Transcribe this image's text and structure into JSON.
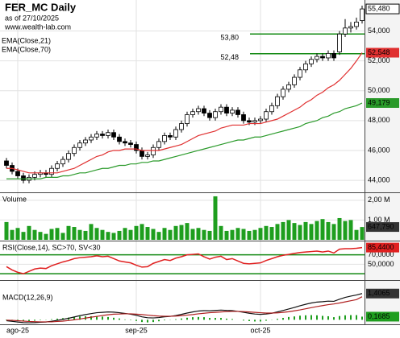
{
  "header": {
    "title": "FER_MC Daily",
    "subtitle": "as of 27/10/2025",
    "site": "www.wealth-lab.com"
  },
  "chart_data": [
    {
      "type": "candlestick",
      "categories": [
        null,
        null,
        "ago-25",
        null,
        null,
        null,
        null,
        null,
        null,
        null,
        null,
        null,
        null,
        null,
        null,
        null,
        null,
        null,
        null,
        null,
        null,
        null,
        null,
        "sep-25",
        null,
        null,
        null,
        null,
        null,
        null,
        null,
        null,
        null,
        null,
        null,
        null,
        null,
        null,
        null,
        null,
        null,
        null,
        null,
        null,
        null,
        "oct-25",
        null,
        null,
        null,
        null,
        null,
        null,
        null,
        null,
        null,
        null,
        null,
        null,
        null,
        null,
        null,
        null,
        null,
        null
      ],
      "open": [
        45.3,
        45.0,
        44.6,
        44.3,
        44.0,
        44.2,
        44.4,
        44.5,
        44.4,
        44.8,
        45.1,
        45.4,
        45.8,
        46.2,
        46.5,
        46.7,
        46.9,
        47.1,
        47.0,
        47.2,
        46.9,
        46.6,
        46.5,
        46.4,
        46.0,
        45.6,
        45.7,
        46.2,
        46.6,
        47.0,
        46.9,
        47.4,
        47.8,
        48.4,
        48.6,
        48.8,
        48.5,
        48.2,
        48.6,
        48.9,
        48.5,
        48.7,
        48.4,
        48.0,
        47.9,
        48.0,
        48.1,
        48.6,
        49.0,
        49.6,
        50.1,
        50.4,
        50.9,
        51.4,
        51.8,
        52.1,
        52.3,
        52.2,
        52.5,
        52.6,
        53.8,
        54.2,
        54.3,
        54.7
      ],
      "high": [
        45.5,
        45.2,
        44.8,
        44.5,
        44.4,
        44.6,
        44.7,
        44.7,
        45.0,
        45.3,
        45.6,
        46.0,
        46.4,
        46.7,
        46.9,
        47.1,
        47.3,
        47.3,
        47.4,
        47.4,
        47.1,
        46.8,
        46.7,
        46.6,
        46.2,
        45.9,
        46.4,
        46.8,
        47.2,
        47.2,
        47.6,
        48.0,
        48.6,
        48.8,
        49.0,
        49.0,
        48.7,
        48.8,
        49.1,
        49.1,
        48.9,
        48.9,
        48.6,
        48.2,
        48.2,
        48.3,
        48.8,
        49.2,
        49.8,
        50.3,
        50.6,
        51.1,
        51.6,
        52.0,
        52.3,
        52.5,
        52.5,
        52.7,
        52.7,
        54.0,
        54.8,
        54.6,
        54.9,
        55.7
      ],
      "low": [
        44.8,
        44.4,
        44.1,
        43.8,
        43.8,
        44.0,
        44.2,
        44.2,
        44.2,
        44.6,
        44.9,
        45.2,
        45.6,
        46.0,
        46.3,
        46.5,
        46.7,
        46.8,
        46.8,
        46.7,
        46.4,
        46.3,
        46.2,
        45.8,
        45.4,
        45.4,
        45.5,
        46.0,
        46.4,
        46.7,
        46.7,
        47.2,
        47.6,
        48.2,
        48.4,
        48.3,
        48.0,
        48.0,
        48.4,
        48.3,
        48.3,
        48.2,
        47.8,
        47.7,
        47.7,
        47.8,
        47.9,
        48.4,
        48.8,
        49.4,
        49.9,
        50.2,
        50.7,
        51.2,
        51.6,
        51.9,
        52.0,
        52.0,
        52.0,
        52.4,
        53.6,
        53.9,
        54.1,
        54.5
      ],
      "close": [
        45.0,
        44.6,
        44.3,
        44.0,
        44.2,
        44.4,
        44.5,
        44.4,
        44.8,
        45.1,
        45.4,
        45.8,
        46.2,
        46.5,
        46.7,
        46.9,
        47.1,
        47.0,
        47.2,
        46.9,
        46.6,
        46.5,
        46.4,
        46.0,
        45.6,
        45.7,
        46.2,
        46.6,
        47.0,
        46.9,
        47.4,
        47.8,
        48.4,
        48.6,
        48.8,
        48.5,
        48.2,
        48.6,
        48.9,
        48.5,
        48.7,
        48.4,
        48.0,
        47.9,
        48.0,
        48.1,
        48.6,
        49.0,
        49.6,
        50.1,
        50.4,
        50.9,
        51.4,
        51.8,
        52.1,
        52.3,
        52.2,
        52.5,
        52.2,
        53.8,
        54.2,
        54.3,
        54.6,
        55.48
      ],
      "last_label": "55,480",
      "series": [
        {
          "name": "EMA(Close,21)",
          "color": "#e03030",
          "last_label": "52,548",
          "values": [
            44.8,
            44.8,
            44.7,
            44.6,
            44.5,
            44.5,
            44.5,
            44.5,
            44.5,
            44.5,
            44.6,
            44.7,
            44.8,
            45.0,
            45.2,
            45.4,
            45.6,
            45.7,
            45.9,
            46.0,
            46.0,
            46.1,
            46.1,
            46.1,
            46.0,
            46.0,
            46.0,
            46.0,
            46.1,
            46.2,
            46.3,
            46.4,
            46.6,
            46.8,
            47.0,
            47.1,
            47.2,
            47.3,
            47.5,
            47.6,
            47.7,
            47.7,
            47.7,
            47.8,
            47.8,
            47.8,
            47.9,
            48.0,
            48.1,
            48.3,
            48.5,
            48.7,
            48.9,
            49.2,
            49.4,
            49.7,
            49.9,
            50.2,
            50.4,
            50.7,
            51.1,
            51.5,
            52.0,
            52.548
          ]
        },
        {
          "name": "EMA(Close,70)",
          "color": "#2a9a2a",
          "last_label": "49,179",
          "values": [
            44.1,
            44.1,
            44.1,
            44.1,
            44.1,
            44.1,
            44.1,
            44.2,
            44.2,
            44.2,
            44.3,
            44.3,
            44.4,
            44.5,
            44.5,
            44.6,
            44.7,
            44.8,
            44.8,
            44.9,
            45.0,
            45.0,
            45.1,
            45.1,
            45.2,
            45.2,
            45.3,
            45.3,
            45.4,
            45.5,
            45.6,
            45.7,
            45.8,
            45.9,
            46.0,
            46.1,
            46.2,
            46.3,
            46.4,
            46.5,
            46.6,
            46.7,
            46.7,
            46.8,
            46.9,
            46.9,
            47.0,
            47.1,
            47.2,
            47.3,
            47.4,
            47.5,
            47.6,
            47.8,
            47.9,
            48.0,
            48.2,
            48.3,
            48.5,
            48.6,
            48.8,
            48.9,
            49.0,
            49.179
          ]
        }
      ],
      "levels": [
        {
          "value": 53.8,
          "label": "53,80"
        },
        {
          "value": 52.48,
          "label": "52,48"
        }
      ],
      "level_color": "#138a13",
      "ylim": [
        43.25,
        55.97
      ],
      "yticks": [
        {
          "value": 44,
          "label": "44,000"
        },
        {
          "value": 46,
          "label": "46,000"
        },
        {
          "value": 48,
          "label": "48,000"
        },
        {
          "value": 50,
          "label": "50,000"
        },
        {
          "value": 52,
          "label": "52,000"
        },
        {
          "value": 54,
          "label": "54,000"
        }
      ],
      "grid": true
    },
    {
      "type": "bar",
      "title": "Volume",
      "color": "#1e9e1e",
      "last_label": "647,790",
      "values": [
        900000,
        500000,
        600000,
        400000,
        700000,
        500000,
        400000,
        300000,
        550000,
        600000,
        350000,
        700000,
        650000,
        500000,
        450000,
        800000,
        600000,
        500000,
        400000,
        350000,
        450000,
        600000,
        500000,
        700000,
        800000,
        650000,
        550000,
        400000,
        600000,
        500000,
        700000,
        750000,
        850000,
        550000,
        600000,
        500000,
        450000,
        2200000,
        700000,
        450000,
        500000,
        600000,
        550000,
        450000,
        500000,
        600000,
        700000,
        650000,
        800000,
        900000,
        1000000,
        850000,
        750000,
        900000,
        800000,
        950000,
        1050000,
        900000,
        800000,
        1100000,
        950000,
        1000000,
        500000,
        647790
      ],
      "ylim": [
        0,
        2320000
      ],
      "yticks": [
        {
          "value": 2000000,
          "label": "2,00 M"
        },
        {
          "value": 1000000,
          "label": "1,00 M"
        }
      ]
    },
    {
      "type": "line",
      "title": "RSI(Close,14), SC>70, SV<30",
      "series": [
        {
          "color": "#e02020",
          "last_label": "85,4400",
          "values": [
            45,
            38,
            33,
            30,
            35,
            40,
            42,
            41,
            47,
            51,
            55,
            58,
            62,
            64,
            65,
            66,
            68,
            66,
            67,
            62,
            57,
            55,
            53,
            48,
            44,
            45,
            52,
            56,
            60,
            58,
            63,
            66,
            70,
            71,
            72,
            66,
            61,
            65,
            67,
            60,
            62,
            57,
            52,
            51,
            52,
            53,
            58,
            62,
            66,
            69,
            71,
            73,
            75,
            76,
            77,
            78,
            76,
            78,
            74,
            82,
            83,
            83,
            84,
            85.44
          ]
        }
      ],
      "levels": [
        70,
        30
      ],
      "level_color": "#138a13",
      "ylim": [
        20,
        95
      ],
      "yticks": [
        {
          "value": 70,
          "label": "70,0000"
        },
        {
          "value": 50,
          "label": "50,0000"
        }
      ]
    },
    {
      "type": "macd",
      "title": "MACD(12,26,9)",
      "series": [
        {
          "color": "#111111",
          "last_label": "1,4065",
          "values": [
            -0.05,
            -0.08,
            -0.12,
            -0.15,
            -0.16,
            -0.15,
            -0.13,
            -0.12,
            -0.08,
            -0.03,
            0.02,
            0.08,
            0.15,
            0.22,
            0.28,
            0.33,
            0.38,
            0.4,
            0.42,
            0.41,
            0.38,
            0.34,
            0.3,
            0.24,
            0.16,
            0.11,
            0.1,
            0.12,
            0.16,
            0.18,
            0.23,
            0.29,
            0.36,
            0.42,
            0.47,
            0.49,
            0.48,
            0.5,
            0.52,
            0.5,
            0.49,
            0.45,
            0.4,
            0.35,
            0.31,
            0.29,
            0.31,
            0.35,
            0.42,
            0.5,
            0.58,
            0.66,
            0.75,
            0.83,
            0.9,
            0.95,
            0.97,
            1.0,
            0.99,
            1.1,
            1.2,
            1.27,
            1.33,
            1.4065
          ]
        },
        {
          "color": "#b02020",
          "values": [
            -0.02,
            -0.03,
            -0.05,
            -0.07,
            -0.09,
            -0.1,
            -0.11,
            -0.11,
            -0.11,
            -0.09,
            -0.07,
            -0.04,
            0.0,
            0.04,
            0.09,
            0.14,
            0.18,
            0.23,
            0.27,
            0.3,
            0.31,
            0.32,
            0.32,
            0.3,
            0.28,
            0.25,
            0.22,
            0.2,
            0.19,
            0.19,
            0.2,
            0.22,
            0.25,
            0.28,
            0.32,
            0.35,
            0.38,
            0.4,
            0.42,
            0.44,
            0.45,
            0.45,
            0.44,
            0.42,
            0.4,
            0.38,
            0.36,
            0.36,
            0.37,
            0.4,
            0.43,
            0.48,
            0.53,
            0.59,
            0.65,
            0.71,
            0.76,
            0.81,
            0.85,
            0.9,
            0.96,
            1.02,
            1.08,
            1.238
          ]
        }
      ],
      "histogram": {
        "color": "#1e9e1e",
        "last_label": "0,1685",
        "values": [
          -0.03,
          -0.05,
          -0.07,
          -0.08,
          -0.07,
          -0.05,
          -0.02,
          -0.01,
          0.03,
          0.06,
          0.09,
          0.12,
          0.15,
          0.18,
          0.19,
          0.19,
          0.2,
          0.17,
          0.15,
          0.11,
          0.07,
          0.02,
          -0.02,
          -0.06,
          -0.12,
          -0.14,
          -0.12,
          -0.08,
          -0.03,
          -0.01,
          0.03,
          0.07,
          0.11,
          0.14,
          0.15,
          0.14,
          0.1,
          0.1,
          0.1,
          0.06,
          0.04,
          0.0,
          -0.04,
          -0.07,
          -0.09,
          -0.09,
          -0.05,
          -0.01,
          0.05,
          0.1,
          0.15,
          0.18,
          0.22,
          0.24,
          0.25,
          0.24,
          0.21,
          0.19,
          0.14,
          0.2,
          0.24,
          0.25,
          0.25,
          0.1685
        ]
      },
      "ylim": [
        -0.2,
        2.0
      ]
    }
  ]
}
